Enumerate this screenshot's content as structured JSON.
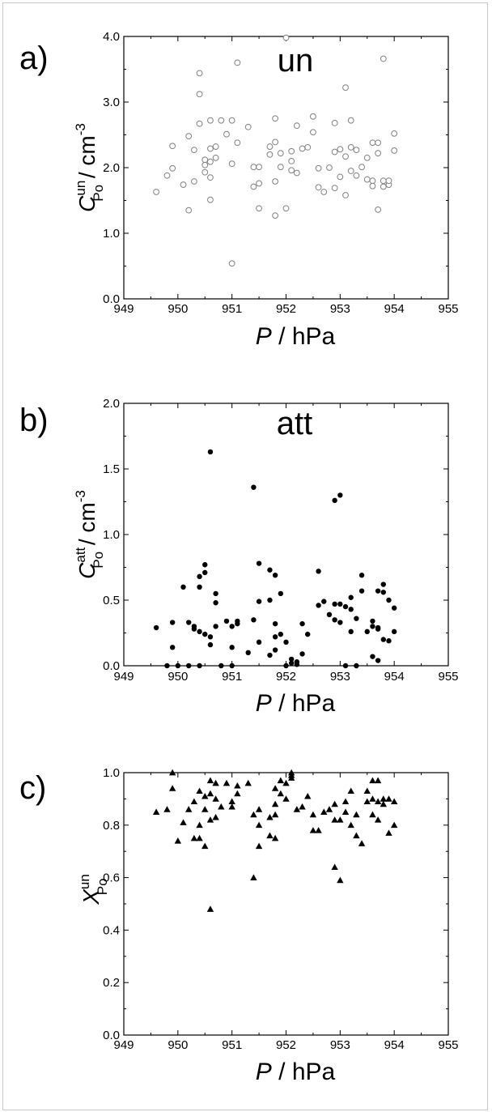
{
  "colors": {
    "axis": "#000000",
    "open_marker": "#808080",
    "filled_marker": "#000000"
  },
  "chart_data": [
    {
      "type": "scatter",
      "panel_label": "a)",
      "inset_title": "un",
      "marker": "open-circle",
      "xlabel_var": "P",
      "xlabel_unit": " / hPa",
      "ylabel_base": "C",
      "ylabel_sup": "un",
      "ylabel_sub": "Po",
      "ylabel_unit": " / cm",
      "ylabel_unit_sup": "-3",
      "xlim": [
        949,
        955
      ],
      "ylim": [
        0.0,
        4.0
      ],
      "xticks": [
        "949",
        "950",
        "951",
        "952",
        "953",
        "954",
        "955"
      ],
      "yticks": [
        "0.0",
        "1.0",
        "2.0",
        "3.0",
        "4.0"
      ],
      "grid": false,
      "x": [
        949.6,
        949.8,
        949.9,
        949.9,
        950.1,
        950.2,
        950.2,
        950.3,
        950.3,
        950.4,
        950.4,
        950.4,
        950.5,
        950.5,
        950.5,
        950.6,
        950.6,
        950.6,
        950.6,
        950.6,
        950.7,
        950.7,
        950.8,
        950.9,
        951.0,
        951.0,
        951.0,
        951.1,
        951.1,
        951.3,
        951.4,
        951.4,
        951.5,
        951.5,
        951.5,
        951.7,
        951.7,
        951.8,
        951.8,
        951.8,
        951.8,
        951.9,
        951.9,
        952.0,
        952.0,
        952.1,
        952.1,
        952.1,
        952.2,
        952.2,
        952.3,
        952.4,
        952.5,
        952.5,
        952.6,
        952.6,
        952.7,
        952.8,
        952.9,
        952.9,
        952.9,
        953.0,
        953.0,
        953.1,
        953.1,
        953.1,
        953.2,
        953.2,
        953.2,
        953.3,
        953.3,
        953.4,
        953.5,
        953.5,
        953.6,
        953.6,
        953.6,
        953.7,
        953.7,
        953.7,
        953.8,
        953.8,
        953.8,
        953.9,
        953.9,
        954.0,
        954.0
      ],
      "y": [
        1.63,
        1.88,
        2.33,
        1.99,
        1.74,
        2.48,
        1.35,
        2.27,
        1.79,
        3.44,
        3.12,
        2.67,
        1.93,
        2.12,
        2.04,
        2.72,
        2.29,
        1.85,
        1.51,
        2.09,
        2.32,
        2.15,
        2.72,
        2.51,
        2.72,
        2.06,
        0.54,
        3.6,
        2.38,
        2.62,
        1.71,
        2.01,
        2.01,
        1.76,
        1.38,
        2.32,
        2.2,
        2.75,
        2.39,
        1.27,
        1.79,
        2.22,
        2.01,
        3.98,
        1.38,
        2.25,
        2.1,
        1.96,
        2.64,
        1.92,
        2.29,
        2.31,
        2.78,
        2.54,
        1.99,
        1.7,
        1.63,
        2.0,
        2.68,
        2.24,
        1.69,
        2.28,
        1.86,
        3.22,
        2.17,
        1.58,
        2.72,
        2.31,
        1.95,
        2.27,
        1.88,
        2.01,
        2.15,
        1.82,
        2.38,
        1.8,
        1.72,
        2.38,
        2.22,
        1.36,
        3.66,
        1.8,
        1.71,
        1.74,
        1.8,
        2.52,
        2.26
      ]
    },
    {
      "type": "scatter",
      "panel_label": "b)",
      "inset_title": "att",
      "marker": "filled-circle",
      "xlabel_var": "P",
      "xlabel_unit": " / hPa",
      "ylabel_base": "C",
      "ylabel_sup": "att",
      "ylabel_sub": "Po",
      "ylabel_unit": " / cm",
      "ylabel_unit_sup": "-3",
      "xlim": [
        949,
        955
      ],
      "ylim": [
        0.0,
        2.0
      ],
      "xticks": [
        "949",
        "950",
        "951",
        "952",
        "953",
        "954",
        "955"
      ],
      "yticks": [
        "0.0",
        "0.5",
        "1.0",
        "1.5",
        "2.0"
      ],
      "grid": false,
      "x": [
        949.6,
        949.8,
        949.9,
        949.9,
        950.0,
        950.1,
        950.2,
        950.2,
        950.3,
        950.3,
        950.4,
        950.4,
        950.4,
        950.4,
        950.5,
        950.5,
        950.5,
        950.6,
        950.6,
        950.6,
        950.7,
        950.7,
        950.7,
        950.8,
        950.9,
        951.0,
        951.0,
        951.0,
        951.1,
        951.1,
        951.3,
        951.4,
        951.4,
        951.5,
        951.5,
        951.5,
        951.7,
        951.7,
        951.7,
        951.8,
        951.8,
        951.8,
        951.8,
        951.9,
        951.9,
        952.0,
        952.0,
        952.1,
        952.1,
        952.2,
        952.2,
        952.3,
        952.3,
        952.4,
        952.6,
        952.6,
        952.7,
        952.8,
        952.9,
        952.9,
        952.9,
        953.0,
        953.0,
        953.0,
        953.1,
        953.1,
        953.2,
        953.2,
        953.2,
        953.3,
        953.3,
        953.4,
        953.4,
        953.5,
        953.6,
        953.6,
        953.6,
        953.7,
        953.7,
        953.7,
        953.7,
        953.8,
        953.8,
        953.8,
        953.9,
        953.9,
        954.0,
        954.0
      ],
      "y": [
        0.29,
        0.0,
        0.14,
        0.33,
        0.0,
        0.6,
        0.33,
        0.0,
        0.3,
        0.28,
        0.68,
        0.6,
        0.26,
        0.0,
        0.77,
        0.71,
        0.24,
        1.63,
        0.22,
        0.16,
        0.55,
        0.3,
        0.48,
        0.0,
        0.34,
        0.14,
        0.3,
        0.0,
        0.32,
        0.34,
        0.1,
        1.36,
        0.35,
        0.78,
        0.49,
        0.18,
        0.73,
        0.08,
        0.5,
        0.69,
        0.32,
        0.12,
        0.22,
        0.55,
        0.24,
        0.0,
        0.18,
        0.05,
        0.02,
        0.03,
        0.01,
        0.32,
        0.09,
        0.24,
        0.72,
        0.46,
        0.49,
        0.39,
        0.35,
        1.26,
        0.47,
        1.3,
        0.33,
        0.47,
        0.45,
        0.0,
        0.52,
        0.43,
        0.26,
        0.36,
        0.0,
        0.69,
        0.57,
        0.26,
        0.34,
        0.07,
        0.3,
        0.28,
        0.04,
        0.57,
        0.29,
        0.62,
        0.56,
        0.2,
        0.19,
        0.5,
        0.26,
        0.44
      ]
    },
    {
      "type": "scatter",
      "panel_label": "c)",
      "inset_title": "",
      "marker": "filled-triangle",
      "xlabel_var": "P",
      "xlabel_unit": " / hPa",
      "ylabel_base": "X",
      "ylabel_sup": "un",
      "ylabel_sub": "Po",
      "ylabel_unit": "",
      "ylabel_unit_sup": "",
      "xlim": [
        949,
        955
      ],
      "ylim": [
        0.0,
        1.0
      ],
      "xticks": [
        "949",
        "950",
        "951",
        "952",
        "953",
        "954",
        "955"
      ],
      "yticks": [
        "0.0",
        "0.2",
        "0.4",
        "0.6",
        "0.8",
        "1.0"
      ],
      "grid": false,
      "x": [
        949.6,
        949.8,
        949.9,
        949.9,
        950.0,
        950.1,
        950.2,
        950.3,
        950.3,
        950.4,
        950.4,
        950.4,
        950.5,
        950.5,
        950.5,
        950.6,
        950.6,
        950.6,
        950.6,
        950.7,
        950.7,
        950.7,
        950.8,
        950.9,
        951.0,
        951.0,
        951.1,
        951.1,
        951.3,
        951.4,
        951.4,
        951.5,
        951.5,
        951.5,
        951.7,
        951.7,
        951.8,
        951.8,
        951.8,
        951.8,
        951.9,
        951.9,
        952.0,
        952.0,
        952.1,
        952.1,
        952.1,
        952.2,
        952.3,
        952.4,
        952.5,
        952.5,
        952.6,
        952.7,
        952.8,
        952.9,
        952.9,
        952.9,
        953.0,
        953.0,
        953.1,
        953.1,
        953.2,
        953.2,
        953.3,
        953.3,
        953.4,
        953.5,
        953.5,
        953.6,
        953.6,
        953.6,
        953.7,
        953.7,
        953.7,
        953.8,
        953.8,
        953.9,
        953.9,
        954.0,
        954.0
      ],
      "y": [
        0.85,
        0.86,
        0.94,
        1.0,
        0.74,
        0.81,
        0.86,
        0.75,
        0.89,
        0.93,
        0.8,
        0.75,
        0.91,
        0.72,
        0.86,
        0.92,
        0.82,
        0.48,
        0.97,
        0.83,
        0.9,
        0.96,
        0.87,
        0.96,
        0.89,
        0.87,
        0.95,
        0.92,
        0.96,
        0.6,
        0.84,
        0.72,
        0.8,
        0.86,
        0.76,
        0.83,
        0.94,
        0.88,
        0.84,
        0.75,
        0.97,
        0.92,
        0.9,
        0.96,
        0.98,
        1.0,
        0.99,
        0.86,
        0.87,
        0.91,
        0.78,
        0.84,
        0.78,
        0.85,
        0.86,
        0.88,
        0.64,
        0.82,
        0.59,
        0.82,
        0.85,
        0.89,
        0.8,
        0.93,
        0.84,
        0.76,
        0.73,
        0.89,
        0.93,
        0.97,
        0.84,
        0.9,
        0.89,
        0.97,
        0.82,
        0.88,
        0.9,
        0.77,
        0.9,
        0.8,
        0.89
      ]
    }
  ]
}
